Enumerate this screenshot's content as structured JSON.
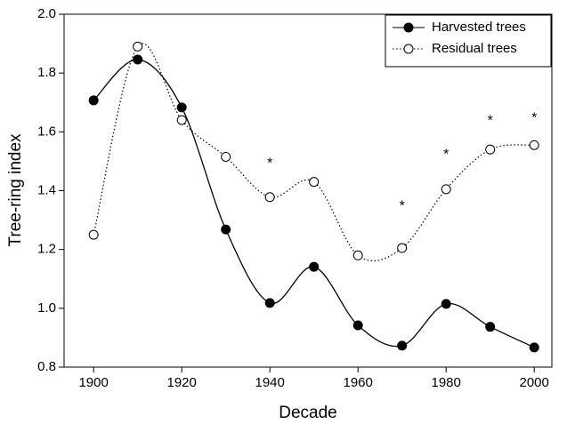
{
  "chart_data": {
    "type": "line",
    "x_label": "Decade",
    "y_label": "Tree-ring index",
    "x": [
      1900,
      1910,
      1920,
      1930,
      1940,
      1950,
      1960,
      1970,
      1980,
      1990,
      2000
    ],
    "series": [
      {
        "name": "Harvested trees",
        "color": "#000000",
        "marker": "filled",
        "line": "solid",
        "values": [
          1.707,
          1.846,
          1.683,
          1.268,
          1.018,
          1.141,
          0.942,
          0.873,
          1.015,
          0.937,
          0.867
        ]
      },
      {
        "name": "Residual trees",
        "color": "#000000",
        "marker": "open",
        "line": "dotted",
        "values": [
          1.25,
          1.89,
          1.64,
          1.515,
          1.378,
          1.43,
          1.18,
          1.205,
          1.405,
          1.54,
          1.555
        ]
      }
    ],
    "annotations": [
      {
        "x": 1940,
        "y": 1.5,
        "label": "*"
      },
      {
        "x": 1970,
        "y": 1.355,
        "label": "*"
      },
      {
        "x": 1980,
        "y": 1.53,
        "label": "*"
      },
      {
        "x": 1990,
        "y": 1.645,
        "label": "*"
      },
      {
        "x": 2000,
        "y": 1.655,
        "label": "*"
      }
    ],
    "xlim": [
      1893.3,
      2004
    ],
    "ylim": [
      0.8,
      2.0
    ],
    "xticks": [
      1900,
      1920,
      1940,
      1960,
      1980,
      2000
    ],
    "yticks": [
      {
        "value": 0.8,
        "label": "0.8"
      },
      {
        "value": 1.0,
        "label": "1.0"
      },
      {
        "value": 1.2,
        "label": "1.2"
      },
      {
        "value": 1.4,
        "label": "1.4"
      },
      {
        "value": 1.6,
        "label": "1.6"
      },
      {
        "value": 1.8,
        "label": "1.8"
      },
      {
        "value": 2.0,
        "label": "2.0"
      }
    ],
    "legend": "top-right"
  }
}
